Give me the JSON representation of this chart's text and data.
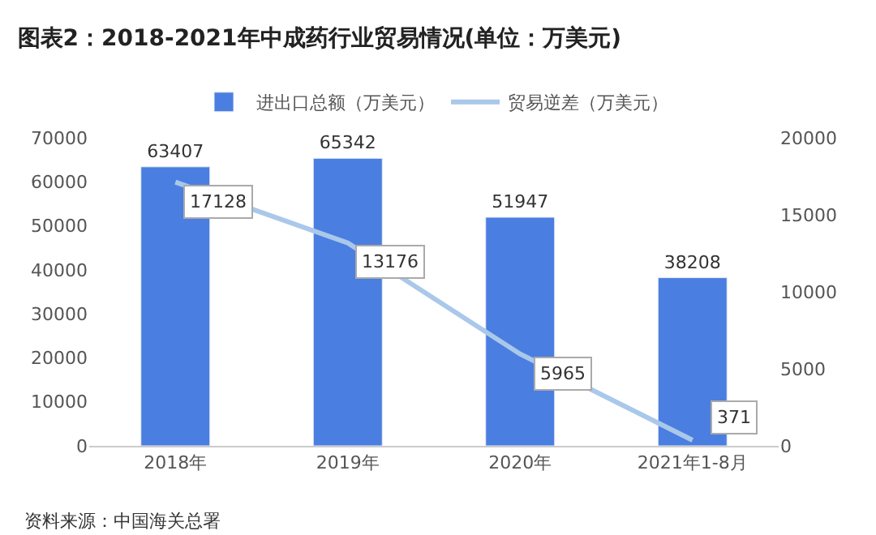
{
  "chart_data": {
    "type": "bar",
    "title": "图表2：2018-2021年中成药行业贸易情况(单位：万美元)",
    "categories": [
      "2018年",
      "2019年",
      "2020年",
      "2021年1-8月"
    ],
    "series": [
      {
        "name": "进出口总额（万美元）",
        "color": "#4a7ee0",
        "values": [
          63407,
          65342,
          51947,
          38208
        ]
      },
      {
        "name": "贸易逆差（万美元）",
        "color": "#a9c8ea",
        "type": "line",
        "axis": "y2",
        "values": [
          17128,
          13176,
          5965,
          371
        ]
      }
    ],
    "ylim": [
      0,
      70000
    ],
    "yticks": [
      0,
      10000,
      20000,
      30000,
      40000,
      50000,
      60000,
      70000
    ],
    "y2lim": [
      0,
      20000
    ],
    "y2ticks": [
      0,
      5000,
      10000,
      15000,
      20000
    ],
    "data_labels": true,
    "legend": "top",
    "marker": "none",
    "line_style": "solid",
    "annotations": [
      "资料来源：中国海关总署"
    ]
  }
}
